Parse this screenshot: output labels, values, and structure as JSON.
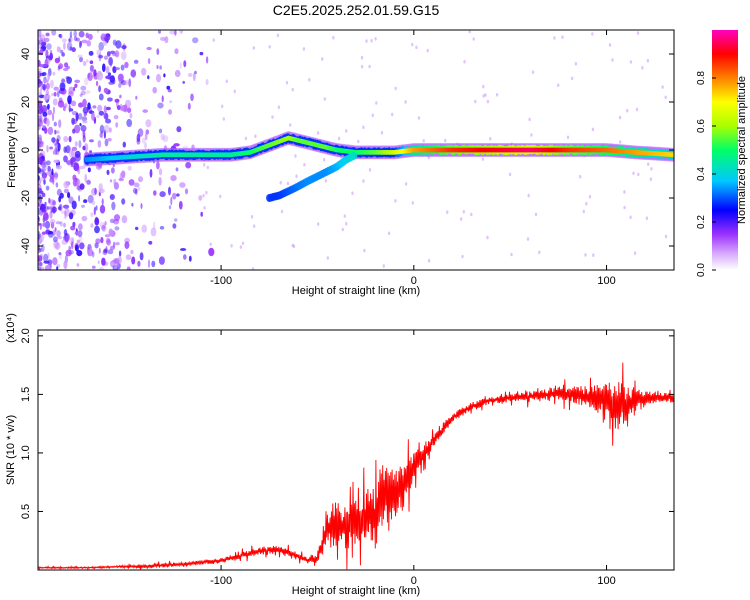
{
  "figure": {
    "title": "C2E5.2025.252.01.59.G15"
  },
  "chart_data": [
    {
      "type": "heatmap",
      "xlabel": "Height of straight line (km)",
      "ylabel": "Frequency (Hz)",
      "xlim": [
        -195,
        135
      ],
      "ylim": [
        -50,
        50
      ],
      "x_ticks": [
        -100,
        0,
        100
      ],
      "y_ticks": [
        -40,
        -20,
        0,
        20,
        40
      ],
      "colorbar": {
        "label": "Normalized spectral amplitude",
        "ticks": [
          0.0,
          0.2,
          0.4,
          0.6,
          0.8
        ],
        "range": [
          0,
          1
        ],
        "colormap": [
          "#ffffff",
          "#9b30ff",
          "#0000ff",
          "#00c8ff",
          "#00ff66",
          "#aaff00",
          "#ffff00",
          "#ff8000",
          "#ff0000",
          "#ff00c0"
        ]
      },
      "ridge": {
        "x": [
          -170,
          -150,
          -130,
          -110,
          -95,
          -85,
          -75,
          -65,
          -60,
          -55,
          -50,
          -45,
          -40,
          -30,
          -20,
          -10,
          0,
          20,
          40,
          60,
          80,
          100,
          115,
          135
        ],
        "y": [
          -4,
          -3,
          -2,
          -2,
          -2,
          -1,
          2,
          5,
          4,
          3,
          2,
          1,
          0,
          -1,
          -1,
          -1,
          0,
          0,
          0,
          0,
          0,
          0,
          -1,
          -2
        ],
        "amplitude": [
          0.3,
          0.35,
          0.4,
          0.4,
          0.4,
          0.45,
          0.5,
          0.55,
          0.5,
          0.5,
          0.5,
          0.5,
          0.45,
          0.45,
          0.5,
          0.6,
          0.75,
          0.85,
          0.9,
          0.95,
          0.85,
          0.8,
          0.75,
          0.7
        ]
      },
      "secondary_branch": {
        "x": [
          -75,
          -70,
          -62,
          -55,
          -50,
          -45,
          -40,
          -35,
          -30
        ],
        "y": [
          -20,
          -19,
          -16,
          -13,
          -11,
          -9,
          -7,
          -4,
          -2
        ],
        "amplitude": [
          0.25,
          0.25,
          0.28,
          0.3,
          0.3,
          0.3,
          0.32,
          0.35,
          0.38
        ]
      }
    },
    {
      "type": "line",
      "xlabel": "Height of straight line (km)",
      "ylabel": "SNR (10 * v/v)",
      "y_multiplier": "(x10⁴)",
      "xlim": [
        -195,
        135
      ],
      "ylim": [
        0,
        2.05
      ],
      "x_ticks": [
        -100,
        0,
        100
      ],
      "y_ticks": [
        0.5,
        1.0,
        1.5,
        2.0
      ],
      "color": "#ff0000",
      "series": [
        {
          "x": [
            -195,
            -170,
            -150,
            -140,
            -120,
            -100,
            -90,
            -80,
            -70,
            -60,
            -55,
            -50,
            -45,
            -40,
            -35,
            -30,
            -25,
            -20,
            -15,
            -10,
            -5,
            0,
            10,
            20,
            30,
            40,
            50,
            60,
            70,
            80,
            90,
            100,
            105,
            110,
            115,
            120,
            125,
            135
          ],
          "mean": [
            0.02,
            0.02,
            0.03,
            0.03,
            0.05,
            0.08,
            0.12,
            0.16,
            0.18,
            0.12,
            0.08,
            0.1,
            0.35,
            0.4,
            0.35,
            0.4,
            0.45,
            0.45,
            0.7,
            0.6,
            0.75,
            0.9,
            1.1,
            1.3,
            1.4,
            1.45,
            1.47,
            1.48,
            1.5,
            1.5,
            1.48,
            1.45,
            1.4,
            1.42,
            1.45,
            1.47,
            1.48,
            1.47
          ],
          "spread": [
            0.01,
            0.01,
            0.02,
            0.03,
            0.03,
            0.04,
            0.05,
            0.06,
            0.06,
            0.05,
            0.05,
            0.08,
            0.3,
            0.35,
            0.35,
            0.35,
            0.4,
            0.5,
            0.5,
            0.45,
            0.35,
            0.2,
            0.1,
            0.06,
            0.06,
            0.05,
            0.06,
            0.08,
            0.1,
            0.12,
            0.15,
            0.25,
            0.35,
            0.3,
            0.2,
            0.12,
            0.08,
            0.07
          ]
        }
      ]
    }
  ]
}
